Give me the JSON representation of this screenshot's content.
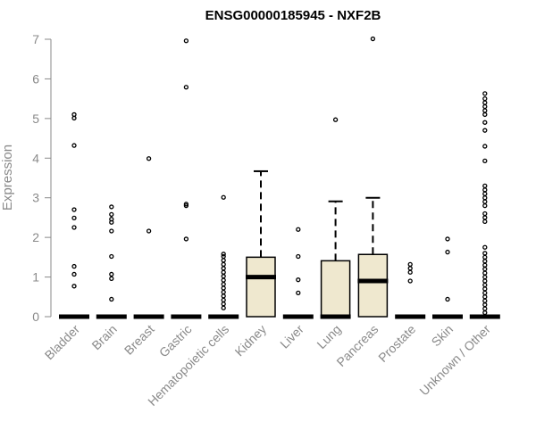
{
  "chart_data": {
    "type": "box",
    "title": "ENSG00000185945 - NXF2B",
    "xlabel": "",
    "ylabel": "Expression",
    "ylim": [
      0,
      7
    ],
    "yticks": [
      0,
      1,
      2,
      3,
      4,
      5,
      6,
      7
    ],
    "grid": false,
    "legend": "none",
    "box_fill": "#efe8cf",
    "categories": [
      "Bladder",
      "Brain",
      "Breast",
      "Gastric",
      "Hematopoietic cells",
      "Kidney",
      "Liver",
      "Lung",
      "Pancreas",
      "Prostate",
      "Skin",
      "Unknown / Other"
    ],
    "boxes": [
      {
        "category": "Bladder",
        "q1": 0,
        "median": 0,
        "q3": 0,
        "whisker_low": 0,
        "whisker_high": 0,
        "outliers": [
          0.77,
          1.07,
          1.27,
          2.25,
          2.49,
          2.7,
          4.32,
          5.01,
          5.1
        ]
      },
      {
        "category": "Brain",
        "q1": 0,
        "median": 0,
        "q3": 0,
        "whisker_low": 0,
        "whisker_high": 0,
        "outliers": [
          0.44,
          0.96,
          1.07,
          1.52,
          2.16,
          2.38,
          2.46,
          2.58,
          2.77
        ]
      },
      {
        "category": "Breast",
        "q1": 0,
        "median": 0,
        "q3": 0,
        "whisker_low": 0,
        "whisker_high": 0,
        "outliers": [
          2.16,
          3.99
        ]
      },
      {
        "category": "Gastric",
        "q1": 0,
        "median": 0,
        "q3": 0,
        "whisker_low": 0,
        "whisker_high": 0,
        "outliers": [
          1.96,
          2.8,
          2.84,
          5.79,
          6.96
        ]
      },
      {
        "category": "Hematopoietic cells",
        "q1": 0,
        "median": 0,
        "q3": 0,
        "whisker_low": 0,
        "whisker_high": 0,
        "outliers": [
          0.22,
          0.32,
          0.42,
          0.52,
          0.62,
          0.72,
          0.82,
          0.92,
          1.02,
          1.12,
          1.22,
          1.32,
          1.42,
          1.52,
          1.58,
          3.01
        ]
      },
      {
        "category": "Kidney",
        "q1": 0,
        "median": 1.0,
        "q3": 1.5,
        "whisker_low": 0,
        "whisker_high": 3.67,
        "outliers": []
      },
      {
        "category": "Liver",
        "q1": 0,
        "median": 0,
        "q3": 0,
        "whisker_low": 0,
        "whisker_high": 0,
        "outliers": [
          0.6,
          0.93,
          1.52,
          2.2
        ]
      },
      {
        "category": "Lung",
        "q1": 0,
        "median": 0,
        "q3": 1.41,
        "whisker_low": 0,
        "whisker_high": 2.91,
        "outliers": [
          4.97
        ]
      },
      {
        "category": "Pancreas",
        "q1": 0,
        "median": 0.9,
        "q3": 1.57,
        "whisker_low": 0,
        "whisker_high": 3.0,
        "outliers": [
          7.01
        ]
      },
      {
        "category": "Prostate",
        "q1": 0,
        "median": 0,
        "q3": 0,
        "whisker_low": 0,
        "whisker_high": 0,
        "outliers": [
          0.9,
          1.12,
          1.22,
          1.32
        ]
      },
      {
        "category": "Skin",
        "q1": 0,
        "median": 0,
        "q3": 0,
        "whisker_low": 0,
        "whisker_high": 0,
        "outliers": [
          0.44,
          1.63,
          1.96
        ]
      },
      {
        "category": "Unknown / Other",
        "q1": 0,
        "median": 0,
        "q3": 0,
        "whisker_low": 0,
        "whisker_high": 0,
        "outliers": [
          0.1,
          0.2,
          0.3,
          0.4,
          0.5,
          0.6,
          0.7,
          0.8,
          0.9,
          1.0,
          1.1,
          1.2,
          1.3,
          1.4,
          1.5,
          1.6,
          1.75,
          2.4,
          2.5,
          2.6,
          2.8,
          2.9,
          3.0,
          3.1,
          3.2,
          3.3,
          3.93,
          4.3,
          4.7,
          4.9,
          5.1,
          5.2,
          5.3,
          5.4,
          5.5,
          5.63
        ]
      }
    ]
  }
}
